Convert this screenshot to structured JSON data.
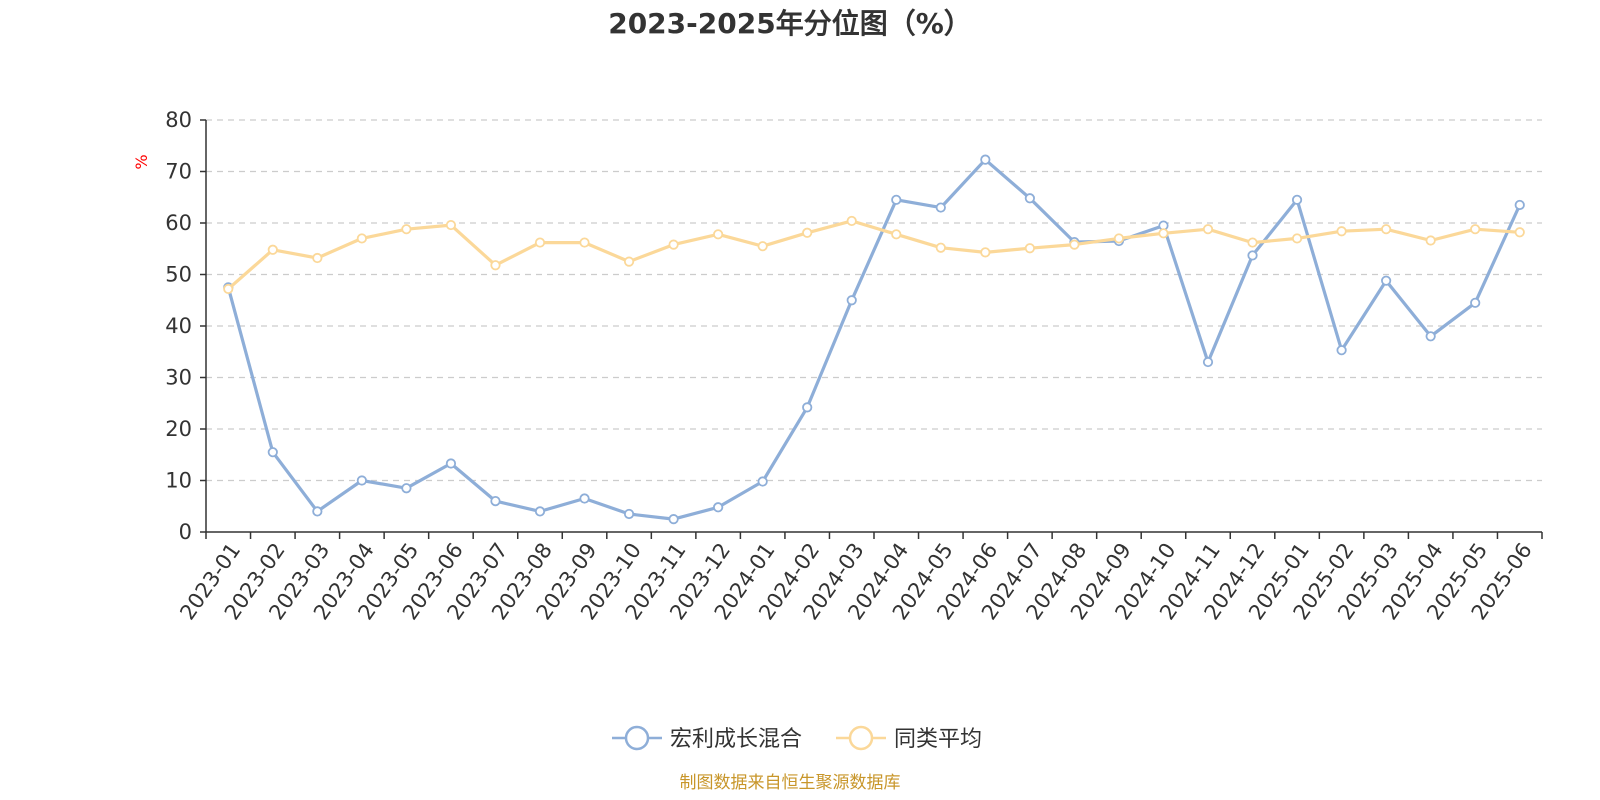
{
  "chart_data": {
    "type": "line",
    "title": "2023-2025年分位图（%）",
    "y_unit": "%",
    "ylim": [
      0,
      80
    ],
    "y_ticks": [
      0,
      10,
      20,
      30,
      40,
      50,
      60,
      70,
      80
    ],
    "grid": true,
    "legend_position": "bottom",
    "categories": [
      "2023-01",
      "2023-02",
      "2023-03",
      "2023-04",
      "2023-05",
      "2023-06",
      "2023-07",
      "2023-08",
      "2023-09",
      "2023-10",
      "2023-11",
      "2023-12",
      "2024-01",
      "2024-02",
      "2024-03",
      "2024-04",
      "2024-05",
      "2024-06",
      "2024-07",
      "2024-08",
      "2024-09",
      "2024-10",
      "2024-11",
      "2024-12",
      "2025-01",
      "2025-02",
      "2025-03",
      "2025-04",
      "2025-05",
      "2025-06"
    ],
    "series": [
      {
        "name": "宏利成长混合",
        "color": "#8eaed8",
        "values": [
          47.5,
          15.5,
          4,
          10,
          8.5,
          13.3,
          6,
          4,
          6.5,
          3.5,
          2.5,
          4.8,
          9.8,
          24.2,
          45,
          64.5,
          63,
          72.3,
          64.8,
          56.3,
          56.5,
          59.5,
          33,
          53.7,
          64.5,
          35.3,
          48.8,
          38,
          44.5,
          63.5
        ]
      },
      {
        "name": "同类平均",
        "color": "#fbd899",
        "values": [
          47.2,
          54.8,
          53.2,
          57,
          58.8,
          59.6,
          51.8,
          56.2,
          56.2,
          52.5,
          55.8,
          57.8,
          55.5,
          58.1,
          60.4,
          57.8,
          55.2,
          54.3,
          55.1,
          55.8,
          57,
          58,
          58.8,
          56.2,
          57,
          58.4,
          58.8,
          56.6,
          58.8,
          58.2
        ]
      }
    ],
    "source": "制图数据来自恒生聚源数据库",
    "colors": {
      "axis": "#333333",
      "grid": "#cccccc",
      "unit": "#ff0000",
      "source": "#c8962a"
    }
  }
}
